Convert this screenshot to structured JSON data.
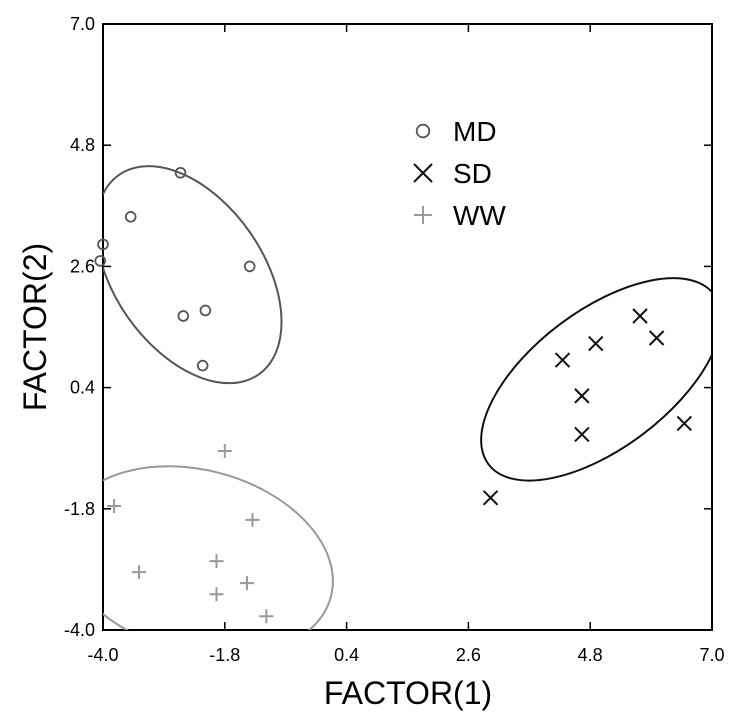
{
  "chart_data": {
    "type": "scatter",
    "title": "",
    "xlabel": "FACTOR(1)",
    "ylabel": "FACTOR(2)",
    "xlim": [
      -4.0,
      7.0
    ],
    "ylim": [
      -4.0,
      7.0
    ],
    "xticks": [
      "-4.0",
      "-1.8",
      "0.4",
      "2.6",
      "4.8",
      "7.0"
    ],
    "yticks": [
      "-4.0",
      "-1.8",
      "0.4",
      "2.6",
      "4.8",
      "7.0"
    ],
    "grid": false,
    "legend_position": "top-center",
    "series": [
      {
        "name": "MD",
        "marker": "circle",
        "color": "#555555",
        "points": [
          [
            -2.6,
            4.3
          ],
          [
            -3.5,
            3.5
          ],
          [
            -4.0,
            3.0
          ],
          [
            -4.05,
            2.7
          ],
          [
            -1.35,
            2.6
          ],
          [
            -2.15,
            1.8
          ],
          [
            -2.55,
            1.7
          ],
          [
            -2.2,
            0.8
          ]
        ],
        "ellipse": {
          "cx": -2.45,
          "cy": 2.45,
          "rx": 2.2,
          "ry": 1.35,
          "angle_deg": -55
        }
      },
      {
        "name": "SD",
        "marker": "x",
        "color": "#111111",
        "points": [
          [
            5.7,
            1.7
          ],
          [
            6.0,
            1.3
          ],
          [
            4.9,
            1.2
          ],
          [
            4.3,
            0.9
          ],
          [
            4.65,
            0.25
          ],
          [
            6.5,
            -0.25
          ],
          [
            4.65,
            -0.45
          ],
          [
            3.0,
            -1.6
          ]
        ],
        "ellipse": {
          "cx": 5.0,
          "cy": 0.55,
          "rx": 2.55,
          "ry": 1.25,
          "angle_deg": 37
        }
      },
      {
        "name": "WW",
        "marker": "plus",
        "color": "#999999",
        "points": [
          [
            -1.8,
            -0.75
          ],
          [
            -3.8,
            -1.75
          ],
          [
            -1.3,
            -2.0
          ],
          [
            -1.95,
            -2.75
          ],
          [
            -3.35,
            -2.95
          ],
          [
            -1.4,
            -3.15
          ],
          [
            -1.95,
            -3.35
          ],
          [
            -1.05,
            -3.75
          ]
        ],
        "ellipse": {
          "cx": -2.3,
          "cy": -2.75,
          "rx": 2.5,
          "ry": 1.65,
          "angle_deg": -15
        }
      }
    ]
  }
}
